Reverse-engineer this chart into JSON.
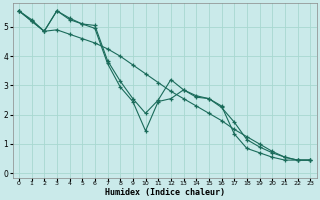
{
  "xlabel": "Humidex (Indice chaleur)",
  "ylabel": "",
  "bg_color": "#caeaea",
  "line_color": "#1a6b5a",
  "grid_color": "#a8d8d0",
  "xlim": [
    -0.5,
    23.5
  ],
  "ylim": [
    -0.15,
    5.8
  ],
  "xticks": [
    0,
    1,
    2,
    3,
    4,
    5,
    6,
    7,
    8,
    9,
    10,
    11,
    12,
    13,
    14,
    15,
    16,
    17,
    18,
    19,
    20,
    21,
    22,
    23
  ],
  "yticks": [
    0,
    1,
    2,
    3,
    4,
    5
  ],
  "line1_x": [
    0,
    1,
    2,
    3,
    4,
    5,
    6,
    7,
    8,
    9,
    10,
    11,
    12,
    13,
    14,
    15,
    16,
    17,
    18,
    19,
    20,
    21,
    22,
    23
  ],
  "line1_y": [
    5.55,
    5.25,
    4.85,
    5.55,
    5.3,
    5.1,
    5.05,
    3.85,
    3.15,
    2.55,
    2.05,
    2.5,
    3.2,
    2.85,
    2.65,
    2.55,
    2.3,
    1.35,
    0.85,
    0.7,
    0.55,
    0.45,
    0.45,
    0.45
  ],
  "line2_x": [
    0,
    1,
    2,
    3,
    4,
    5,
    6,
    7,
    8,
    9,
    10,
    11,
    12,
    13,
    14,
    15,
    16,
    17,
    18,
    19,
    20,
    21,
    22,
    23
  ],
  "line2_y": [
    5.55,
    5.2,
    4.85,
    5.55,
    5.25,
    5.1,
    4.95,
    3.75,
    2.95,
    2.45,
    1.45,
    2.45,
    2.55,
    2.85,
    2.6,
    2.55,
    2.25,
    1.75,
    1.15,
    0.9,
    0.7,
    0.55,
    0.45,
    0.45
  ],
  "line3_x": [
    0,
    1,
    2,
    3,
    4,
    5,
    6,
    7,
    8,
    9,
    10,
    11,
    12,
    13,
    14,
    15,
    16,
    17,
    18,
    19,
    20,
    21,
    22,
    23
  ],
  "line3_y": [
    5.55,
    5.2,
    4.85,
    4.9,
    4.75,
    4.6,
    4.45,
    4.25,
    4.0,
    3.7,
    3.4,
    3.1,
    2.8,
    2.55,
    2.3,
    2.05,
    1.8,
    1.5,
    1.25,
    1.0,
    0.75,
    0.55,
    0.45,
    0.45
  ]
}
